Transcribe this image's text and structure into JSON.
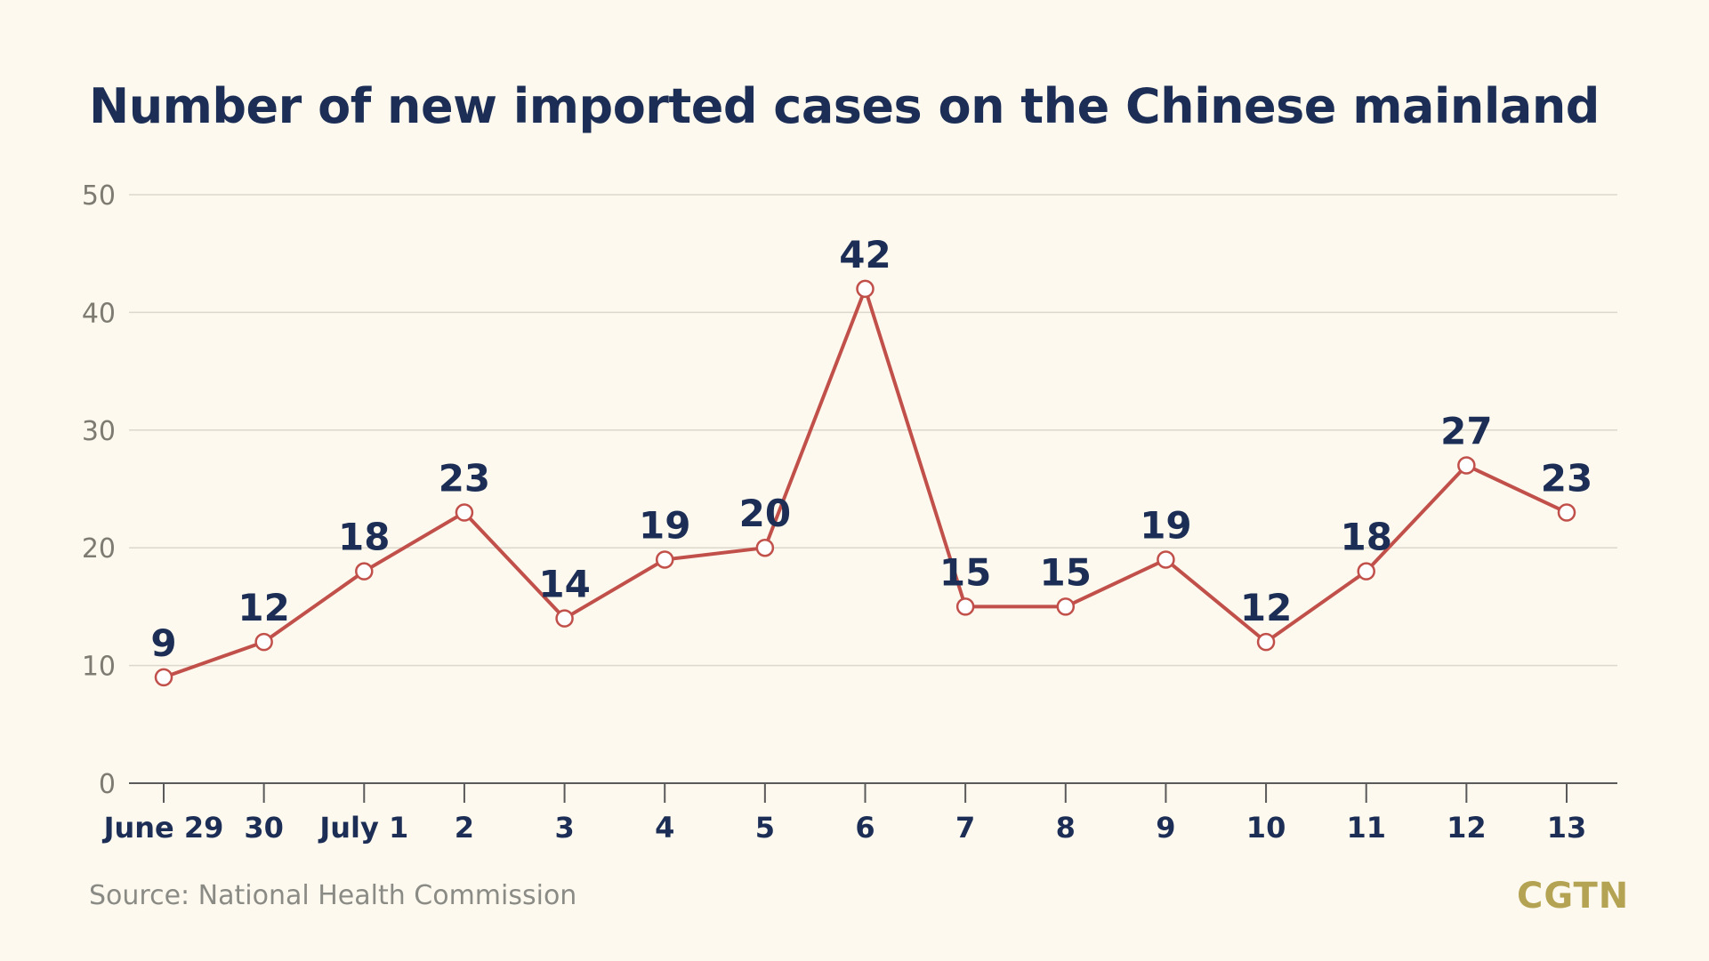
{
  "source": "Source: National Health Commission",
  "brand": "CGTN",
  "colors": {
    "background": "#fdf9ee",
    "title": "#1c2e55",
    "line": "#c1504a",
    "grid": "#dcd8cc",
    "axis_label": "#7d7b72",
    "brand": "#b5a354"
  },
  "chart_data": {
    "type": "line",
    "title": "Number of new imported cases on the Chinese mainland",
    "categories": [
      "June 29",
      "30",
      "July 1",
      "2",
      "3",
      "4",
      "5",
      "6",
      "7",
      "8",
      "9",
      "10",
      "11",
      "12",
      "13"
    ],
    "series": [
      {
        "values": [
          9,
          12,
          18,
          23,
          14,
          19,
          20,
          42,
          15,
          15,
          19,
          12,
          18,
          27,
          23
        ]
      }
    ],
    "yticks": [
      0,
      10,
      20,
      30,
      40,
      50
    ],
    "ylim": [
      0,
      50
    ],
    "xlabel": "",
    "ylabel": "",
    "grid": true,
    "data_labels": true
  }
}
